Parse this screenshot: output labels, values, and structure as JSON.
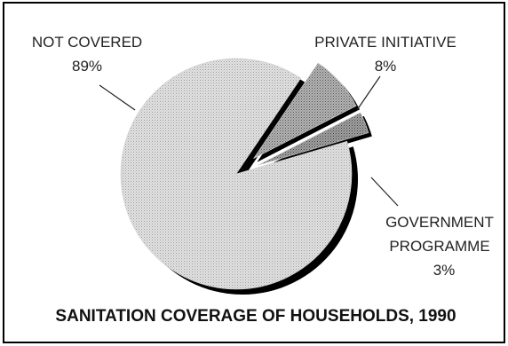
{
  "chart_data": {
    "type": "pie",
    "title": "SANITATION COVERAGE OF HOUSEHOLDS, 1990",
    "categories": [
      "NOT COVERED",
      "PRIVATE INITIATIVE",
      "GOVERNMENT PROGRAMME"
    ],
    "values": [
      89,
      8,
      3
    ],
    "value_labels": [
      "89%",
      "8%",
      "3%"
    ],
    "exploded": [
      "PRIVATE INITIATIVE",
      "GOVERNMENT PROGRAMME"
    ],
    "legend": "none",
    "grid": false
  },
  "labels": {
    "not_covered": {
      "name": "NOT COVERED",
      "value": "89%"
    },
    "private": {
      "name": "PRIVATE INITIATIVE",
      "value": "8%"
    },
    "government": {
      "name_line1": "GOVERNMENT",
      "name_line2": "PROGRAMME",
      "value": "3%"
    }
  },
  "colors": {
    "not_covered": "#d9d9d9",
    "private": "#9c9c9c",
    "government": "#8a8a8a",
    "shadow": "#000000",
    "border": "#000000"
  }
}
